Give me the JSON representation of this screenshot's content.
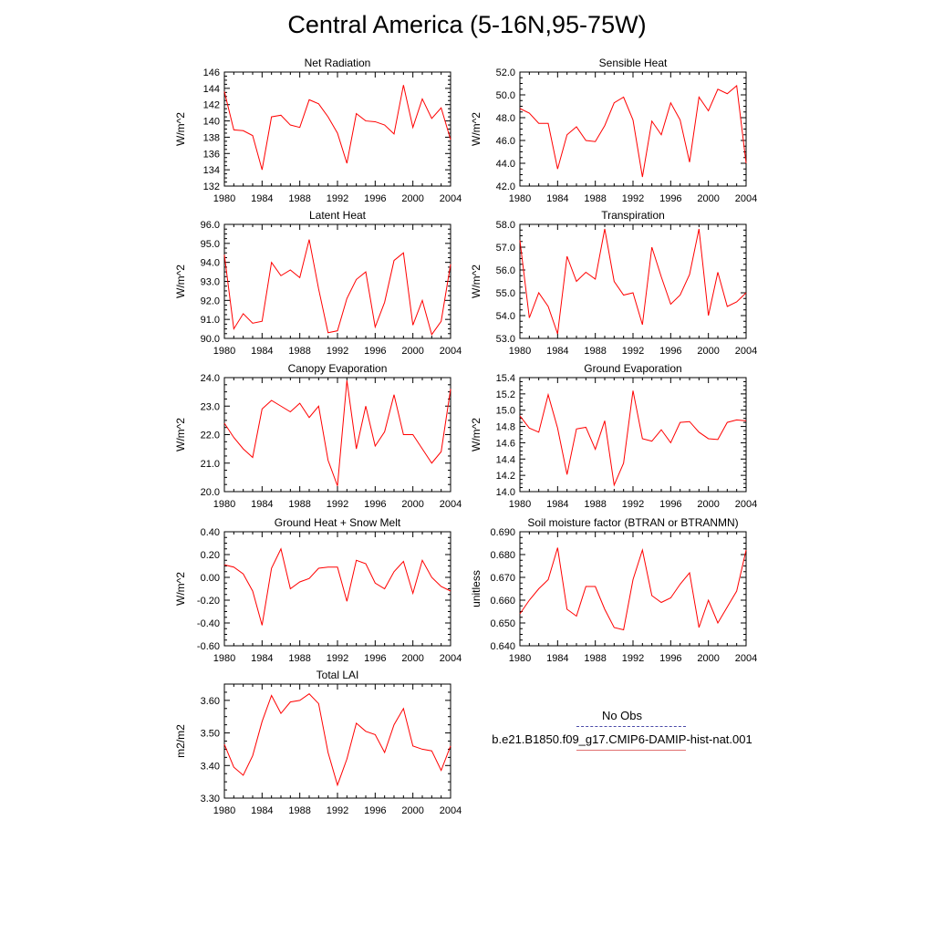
{
  "page_title": "Central America (5-16N,95-75W)",
  "legend": {
    "entries": [
      {
        "label": "No Obs",
        "color": "#4a4aa8",
        "style": "dashed"
      },
      {
        "label": "b.e21.B1850.f09_g17.CMIP6-DAMIP-hist-nat.001",
        "color": "#e07070",
        "style": "solid"
      }
    ]
  },
  "line_color": "#ff0000",
  "chart_data": [
    {
      "type": "line",
      "title": "Net Radiation",
      "ylabel": "W/m^2",
      "xlim": [
        1980,
        2004
      ],
      "ylim": [
        132,
        146
      ],
      "xticks": [
        1980,
        1984,
        1988,
        1992,
        1996,
        2000,
        2004
      ],
      "yticks": [
        132,
        134,
        136,
        138,
        140,
        142,
        144,
        146
      ],
      "ydec": 0,
      "series": [
        {
          "x": [
            1980,
            1981,
            1982,
            1983,
            1984,
            1985,
            1986,
            1987,
            1988,
            1989,
            1990,
            1991,
            1992,
            1993,
            1994,
            1995,
            1996,
            1997,
            1998,
            1999,
            2000,
            2001,
            2002,
            2003,
            2004
          ],
          "values": [
            143.6,
            138.9,
            138.8,
            138.2,
            134.0,
            140.5,
            140.7,
            139.5,
            139.2,
            142.6,
            142.1,
            140.5,
            138.5,
            134.8,
            140.9,
            140.0,
            139.9,
            139.5,
            138.4,
            144.4,
            139.2,
            142.7,
            140.3,
            141.6,
            137.7
          ]
        }
      ]
    },
    {
      "type": "line",
      "title": "Sensible Heat",
      "ylabel": "W/m^2",
      "xlim": [
        1980,
        2004
      ],
      "ylim": [
        42,
        52
      ],
      "xticks": [
        1980,
        1984,
        1988,
        1992,
        1996,
        2000,
        2004
      ],
      "yticks": [
        42,
        44,
        46,
        48,
        50,
        52
      ],
      "ydec": 1,
      "series": [
        {
          "x": [
            1980,
            1981,
            1982,
            1983,
            1984,
            1985,
            1986,
            1987,
            1988,
            1989,
            1990,
            1991,
            1992,
            1993,
            1994,
            1995,
            1996,
            1997,
            1998,
            1999,
            2000,
            2001,
            2002,
            2003,
            2004
          ],
          "values": [
            48.8,
            48.4,
            47.5,
            47.5,
            43.5,
            46.5,
            47.2,
            46.0,
            45.9,
            47.3,
            49.3,
            49.8,
            47.8,
            42.8,
            47.7,
            46.5,
            49.3,
            47.8,
            44.1,
            49.8,
            48.6,
            50.5,
            50.1,
            50.8,
            44.0
          ]
        }
      ]
    },
    {
      "type": "line",
      "title": "Latent Heat",
      "ylabel": "W/m^2",
      "xlim": [
        1980,
        2004
      ],
      "ylim": [
        90,
        96
      ],
      "xticks": [
        1980,
        1984,
        1988,
        1992,
        1996,
        2000,
        2004
      ],
      "yticks": [
        90,
        91,
        92,
        93,
        94,
        95,
        96
      ],
      "ydec": 1,
      "series": [
        {
          "x": [
            1980,
            1981,
            1982,
            1983,
            1984,
            1985,
            1986,
            1987,
            1988,
            1989,
            1990,
            1991,
            1992,
            1993,
            1994,
            1995,
            1996,
            1997,
            1998,
            1999,
            2000,
            2001,
            2002,
            2003,
            2004
          ],
          "values": [
            94.4,
            90.5,
            91.3,
            90.8,
            90.9,
            94.0,
            93.3,
            93.6,
            93.2,
            95.2,
            92.6,
            90.3,
            90.4,
            92.1,
            93.1,
            93.5,
            90.6,
            91.9,
            94.1,
            94.5,
            90.7,
            92.0,
            90.2,
            90.9,
            93.9
          ]
        }
      ]
    },
    {
      "type": "line",
      "title": "Transpiration",
      "ylabel": "W/m^2",
      "xlim": [
        1980,
        2004
      ],
      "ylim": [
        53,
        58
      ],
      "xticks": [
        1980,
        1984,
        1988,
        1992,
        1996,
        2000,
        2004
      ],
      "yticks": [
        53,
        54,
        55,
        56,
        57,
        58
      ],
      "ydec": 1,
      "series": [
        {
          "x": [
            1980,
            1981,
            1982,
            1983,
            1984,
            1985,
            1986,
            1987,
            1988,
            1989,
            1990,
            1991,
            1992,
            1993,
            1994,
            1995,
            1996,
            1997,
            1998,
            1999,
            2000,
            2001,
            2002,
            2003,
            2004
          ],
          "values": [
            57.3,
            53.9,
            55.0,
            54.4,
            53.2,
            56.6,
            55.5,
            55.9,
            55.6,
            57.8,
            55.5,
            54.9,
            55.0,
            53.6,
            57.0,
            55.7,
            54.5,
            54.9,
            55.8,
            57.8,
            54.0,
            55.9,
            54.4,
            54.6,
            55.0
          ]
        }
      ]
    },
    {
      "type": "line",
      "title": "Canopy Evaporation",
      "ylabel": "W/m^2",
      "xlim": [
        1980,
        2004
      ],
      "ylim": [
        20,
        24
      ],
      "xticks": [
        1980,
        1984,
        1988,
        1992,
        1996,
        2000,
        2004
      ],
      "yticks": [
        20,
        21,
        22,
        23,
        24
      ],
      "ydec": 1,
      "series": [
        {
          "x": [
            1980,
            1981,
            1982,
            1983,
            1984,
            1985,
            1986,
            1987,
            1988,
            1989,
            1990,
            1991,
            1992,
            1993,
            1994,
            1995,
            1996,
            1997,
            1998,
            1999,
            2000,
            2001,
            2002,
            2003,
            2004
          ],
          "values": [
            22.4,
            21.9,
            21.5,
            21.2,
            22.9,
            23.2,
            23.0,
            22.8,
            23.1,
            22.6,
            23.0,
            21.1,
            20.2,
            23.9,
            21.5,
            23.0,
            21.6,
            22.1,
            23.4,
            22.0,
            22.0,
            21.5,
            21.0,
            21.4,
            23.6
          ]
        }
      ]
    },
    {
      "type": "line",
      "title": "Ground Evaporation",
      "ylabel": "W/m^2",
      "xlim": [
        1980,
        2004
      ],
      "ylim": [
        14.0,
        15.4
      ],
      "xticks": [
        1980,
        1984,
        1988,
        1992,
        1996,
        2000,
        2004
      ],
      "yticks": [
        14.0,
        14.2,
        14.4,
        14.6,
        14.8,
        15.0,
        15.2,
        15.4
      ],
      "ydec": 1,
      "series": [
        {
          "x": [
            1980,
            1981,
            1982,
            1983,
            1984,
            1985,
            1986,
            1987,
            1988,
            1989,
            1990,
            1991,
            1992,
            1993,
            1994,
            1995,
            1996,
            1997,
            1998,
            1999,
            2000,
            2001,
            2002,
            2003,
            2004
          ],
          "values": [
            14.93,
            14.78,
            14.73,
            15.19,
            14.78,
            14.21,
            14.77,
            14.79,
            14.52,
            14.87,
            14.08,
            14.35,
            15.24,
            14.65,
            14.62,
            14.76,
            14.6,
            14.85,
            14.86,
            14.73,
            14.65,
            14.64,
            14.85,
            14.88,
            14.87
          ]
        }
      ]
    },
    {
      "type": "line",
      "title": "Ground Heat + Snow Melt",
      "ylabel": "W/m^2",
      "xlim": [
        1980,
        2004
      ],
      "ylim": [
        -0.6,
        0.4
      ],
      "xticks": [
        1980,
        1984,
        1988,
        1992,
        1996,
        2000,
        2004
      ],
      "yticks": [
        -0.6,
        -0.4,
        -0.2,
        0.0,
        0.2,
        0.4
      ],
      "ydec": 2,
      "series": [
        {
          "x": [
            1980,
            1981,
            1982,
            1983,
            1984,
            1985,
            1986,
            1987,
            1988,
            1989,
            1990,
            1991,
            1992,
            1993,
            1994,
            1995,
            1996,
            1997,
            1998,
            1999,
            2000,
            2001,
            2002,
            2003,
            2004
          ],
          "values": [
            0.11,
            0.09,
            0.03,
            -0.12,
            -0.42,
            0.08,
            0.25,
            -0.1,
            -0.04,
            -0.01,
            0.08,
            0.09,
            0.09,
            -0.21,
            0.15,
            0.12,
            -0.05,
            -0.1,
            0.05,
            0.14,
            -0.14,
            0.15,
            0.0,
            -0.08,
            -0.12
          ]
        }
      ]
    },
    {
      "type": "line",
      "title": "Soil moisture factor (BTRAN or BTRANMN)",
      "ylabel": "unitless",
      "xlim": [
        1980,
        2004
      ],
      "ylim": [
        0.64,
        0.69
      ],
      "xticks": [
        1980,
        1984,
        1988,
        1992,
        1996,
        2000,
        2004
      ],
      "yticks": [
        0.64,
        0.65,
        0.66,
        0.67,
        0.68,
        0.69
      ],
      "ydec": 3,
      "series": [
        {
          "x": [
            1980,
            1981,
            1982,
            1983,
            1984,
            1985,
            1986,
            1987,
            1988,
            1989,
            1990,
            1991,
            1992,
            1993,
            1994,
            1995,
            1996,
            1997,
            1998,
            1999,
            2000,
            2001,
            2002,
            2003,
            2004
          ],
          "values": [
            0.654,
            0.66,
            0.665,
            0.669,
            0.683,
            0.656,
            0.653,
            0.666,
            0.666,
            0.656,
            0.648,
            0.647,
            0.669,
            0.682,
            0.662,
            0.659,
            0.661,
            0.667,
            0.672,
            0.648,
            0.66,
            0.65,
            0.657,
            0.664,
            0.682
          ]
        }
      ]
    },
    {
      "type": "line",
      "title": "Total LAI",
      "ylabel": "m2/m2",
      "xlim": [
        1980,
        2004
      ],
      "ylim": [
        3.3,
        3.65
      ],
      "xticks": [
        1980,
        1984,
        1988,
        1992,
        1996,
        2000,
        2004
      ],
      "yticks": [
        3.3,
        3.4,
        3.5,
        3.6
      ],
      "ydec": 2,
      "series": [
        {
          "x": [
            1980,
            1981,
            1982,
            1983,
            1984,
            1985,
            1986,
            1987,
            1988,
            1989,
            1990,
            1991,
            1992,
            1993,
            1994,
            1995,
            1996,
            1997,
            1998,
            1999,
            2000,
            2001,
            2002,
            2003,
            2004
          ],
          "values": [
            3.465,
            3.395,
            3.37,
            3.43,
            3.535,
            3.615,
            3.56,
            3.595,
            3.6,
            3.62,
            3.59,
            3.44,
            3.34,
            3.42,
            3.53,
            3.505,
            3.495,
            3.44,
            3.525,
            3.575,
            3.46,
            3.45,
            3.445,
            3.385,
            3.46
          ]
        }
      ]
    }
  ]
}
